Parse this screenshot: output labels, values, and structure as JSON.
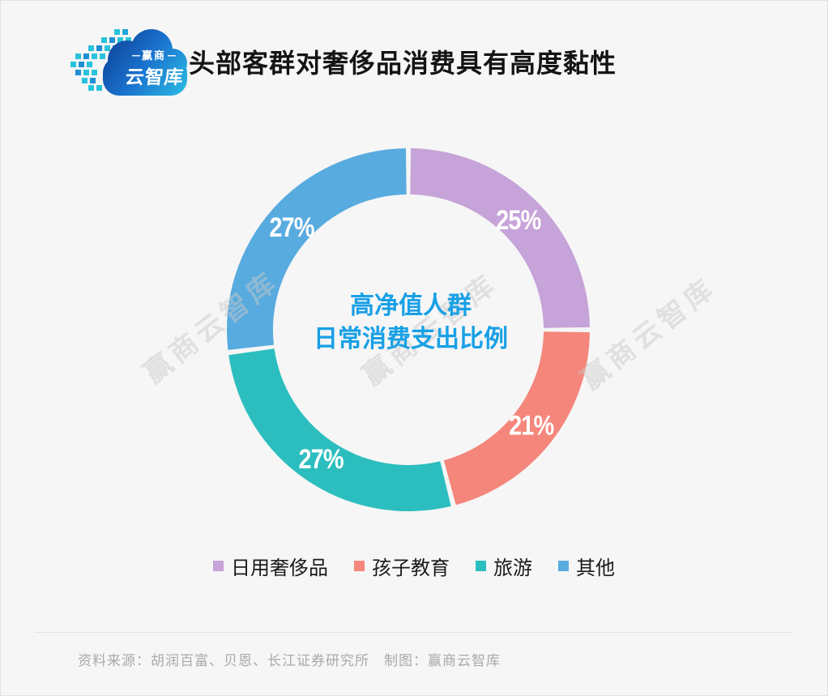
{
  "header": {
    "title": "头部客群对奢侈品消费具有高度黏性",
    "logo": {
      "brand_line1": "赢商",
      "brand_line2": "云智库"
    }
  },
  "chart_data": {
    "type": "pie",
    "subtype": "donut",
    "title": "高净值人群日常消费支出比例",
    "center_label": [
      "高净值人群",
      "日常消费支出比例"
    ],
    "unit": "%",
    "direction": "clockwise",
    "start_angle_deg": 0,
    "legend_position": "bottom",
    "slices": [
      {
        "label": "日用奢侈品",
        "value": 25,
        "color": "#c6a3d8"
      },
      {
        "label": "孩子教育",
        "value": 21,
        "color": "#f5867b"
      },
      {
        "label": "旅游",
        "value": 27,
        "color": "#2cbebe"
      },
      {
        "label": "其他",
        "value": 27,
        "color": "#58abdf"
      }
    ]
  },
  "watermark": {
    "text": "赢商云智库"
  },
  "footer": {
    "source_text": "资料来源：胡润百富、贝恩、长江证券研究所　制图：赢商云智库"
  },
  "colors": {
    "background": "#f6f6f6",
    "center_text": "#18a0e6",
    "title_text": "#141414",
    "footer_text": "#a9a9a9"
  }
}
